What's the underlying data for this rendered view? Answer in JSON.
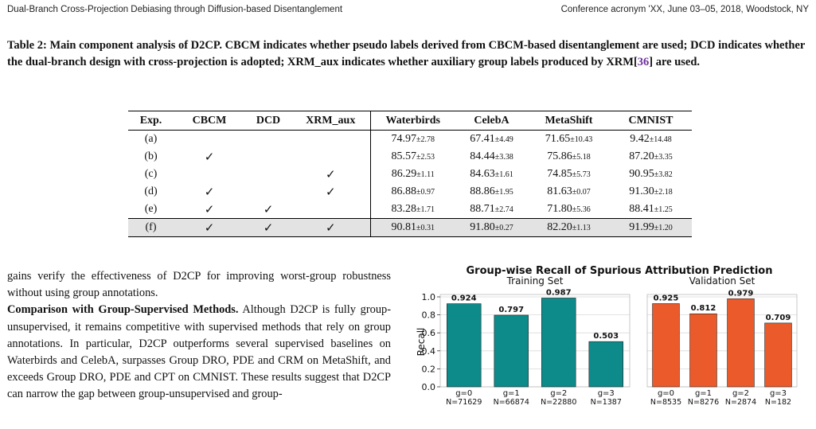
{
  "header": {
    "left": "Dual-Branch Cross-Projection Debiasing through Diffusion-based Disentanglement",
    "right": "Conference acronym 'XX, June 03–05, 2018, Woodstock, NY"
  },
  "caption": {
    "before": "Table 2: Main component analysis of D2CP. CBCM indicates whether pseudo labels derived from CBCM-based disentanglement are used; DCD indicates whether the dual-branch design with cross-projection is adopted; XRM_aux indicates whether auxiliary group labels produced by XRM[",
    "cite": "36",
    "after": "] are used."
  },
  "table": {
    "columns": [
      "Exp.",
      "CBCM",
      "DCD",
      "XRM_aux",
      "Waterbirds",
      "CelebA",
      "MetaShift",
      "CMNIST"
    ],
    "check_glyph": "✓",
    "rows": [
      {
        "exp": "(a)",
        "cbcm": "",
        "dcd": "",
        "xrm": "",
        "vals": [
          [
            "74.97",
            "±2.78"
          ],
          [
            "67.41",
            "±4.49"
          ],
          [
            "71.65",
            "±10.43"
          ],
          [
            "9.42",
            "±14.48"
          ]
        ]
      },
      {
        "exp": "(b)",
        "cbcm": "✓",
        "dcd": "",
        "xrm": "",
        "vals": [
          [
            "85.57",
            "±2.53"
          ],
          [
            "84.44",
            "±3.38"
          ],
          [
            "75.86",
            "±5.18"
          ],
          [
            "87.20",
            "±3.35"
          ]
        ]
      },
      {
        "exp": "(c)",
        "cbcm": "",
        "dcd": "",
        "xrm": "✓",
        "vals": [
          [
            "86.29",
            "±1.11"
          ],
          [
            "84.63",
            "±1.61"
          ],
          [
            "74.85",
            "±5.73"
          ],
          [
            "90.95",
            "±3.82"
          ]
        ]
      },
      {
        "exp": "(d)",
        "cbcm": "✓",
        "dcd": "",
        "xrm": "✓",
        "vals": [
          [
            "86.88",
            "±0.97"
          ],
          [
            "88.86",
            "±1.95"
          ],
          [
            "81.63",
            "±0.07"
          ],
          [
            "91.30",
            "±2.18"
          ]
        ]
      },
      {
        "exp": "(e)",
        "cbcm": "✓",
        "dcd": "✓",
        "xrm": "",
        "vals": [
          [
            "83.28",
            "±1.71"
          ],
          [
            "88.71",
            "±2.74"
          ],
          [
            "71.80",
            "±5.36"
          ],
          [
            "88.41",
            "±1.25"
          ]
        ]
      },
      {
        "exp": "(f)",
        "cbcm": "✓",
        "dcd": "✓",
        "xrm": "✓",
        "vals": [
          [
            "90.81",
            "±0.31"
          ],
          [
            "91.80",
            "±0.27"
          ],
          [
            "82.20",
            "±1.13"
          ],
          [
            "91.99",
            "±1.20"
          ]
        ]
      }
    ]
  },
  "body": {
    "p1": "gains verify the effectiveness of D2CP for improving worst-group robustness without using group annotations.",
    "p2_lead": "Comparison with Group-Supervised Methods.",
    "p2_text": " Although D2CP is fully group-unsupervised, it remains competitive with supervised methods that rely on group annotations. In particular, D2CP outperforms several supervised baselines on Waterbirds and CelebA, surpasses Group DRO, PDE and CRM on MetaShift, and exceeds Group DRO, PDE and CPT on CMNIST. These results suggest that D2CP can narrow the gap between group-unsupervised and group-"
  },
  "chart_data": {
    "type": "bar",
    "title": "Group-wise Recall of Spurious Attribution Prediction",
    "ylabel": "Recall",
    "ylim": [
      0,
      1.0
    ],
    "yticks": [
      "0.0",
      "0.2",
      "0.4",
      "0.6",
      "0.8",
      "1.0"
    ],
    "grid": true,
    "panels": [
      {
        "subtitle": "Training Set",
        "color": "#0d8a8a",
        "categories": [
          "g=0",
          "g=1",
          "g=2",
          "g=3"
        ],
        "counts": [
          "N=71629",
          "N=66874",
          "N=22880",
          "N=1387"
        ],
        "values": [
          0.924,
          0.797,
          0.987,
          0.503
        ],
        "labels": [
          "0.924",
          "0.797",
          "0.987",
          "0.503"
        ]
      },
      {
        "subtitle": "Validation Set",
        "color": "#ea5a2a",
        "categories": [
          "g=0",
          "g=1",
          "g=2",
          "g=3"
        ],
        "counts": [
          "N=8535",
          "N=8276",
          "N=2874",
          "N=182"
        ],
        "values": [
          0.925,
          0.812,
          0.979,
          0.709
        ],
        "labels": [
          "0.925",
          "0.812",
          "0.979",
          "0.709"
        ]
      }
    ]
  }
}
